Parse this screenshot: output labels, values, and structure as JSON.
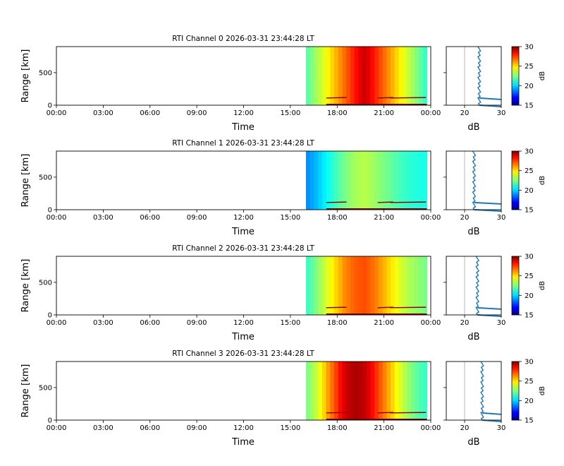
{
  "chart_data": [
    {
      "type": "heatmap",
      "title": "RTI Channel 0 2026-03-31 23:44:28 LT",
      "xlabel": "Time",
      "ylabel": "Range [km]",
      "x_ticks": [
        "00:00",
        "03:00",
        "06:00",
        "09:00",
        "12:00",
        "15:00",
        "18:00",
        "21:00",
        "00:00"
      ],
      "x_range_hours": [
        0,
        24
      ],
      "y_ticks": [
        0,
        500
      ],
      "y_range_km": [
        0,
        900
      ],
      "data_start_hour": 16.0,
      "data_end_hour": 23.75,
      "columns_db": [
        22,
        22.5,
        23,
        23.5,
        24,
        24.5,
        25,
        25.5,
        26,
        26.5,
        27,
        27.5,
        28,
        28.5,
        28.8,
        28.5,
        28,
        27.5,
        27,
        26.5,
        26,
        25.5,
        25,
        24.5,
        24,
        23.5,
        23,
        22.5,
        22,
        21.5
      ],
      "profile": {
        "xlabel": "dB",
        "x_ticks": [
          20,
          30
        ],
        "x_range": [
          15,
          30
        ],
        "baseline_db": 24.0,
        "ref_line_db": 20
      },
      "colorbar": {
        "label": "dB",
        "ticks": [
          15,
          20,
          25,
          30
        ],
        "range": [
          15,
          30
        ],
        "colormap": "jet"
      }
    },
    {
      "type": "heatmap",
      "title": "RTI Channel 1 2026-03-31 23:44:28 LT",
      "xlabel": "Time",
      "ylabel": "Range [km]",
      "x_ticks": [
        "00:00",
        "03:00",
        "06:00",
        "09:00",
        "12:00",
        "15:00",
        "18:00",
        "21:00",
        "00:00"
      ],
      "x_range_hours": [
        0,
        24
      ],
      "y_ticks": [
        0,
        500
      ],
      "y_range_km": [
        0,
        900
      ],
      "data_start_hour": 16.0,
      "data_end_hour": 23.75,
      "columns_db": [
        19,
        19.3,
        19.6,
        20,
        20.4,
        20.8,
        21.2,
        21.6,
        22,
        22.3,
        22.6,
        22.9,
        23.1,
        23.2,
        23.3,
        23.2,
        23,
        22.8,
        22.6,
        22.4,
        22.2,
        22,
        21.8,
        21.6,
        21.4,
        21.3,
        21.2,
        21.1,
        21,
        21
      ],
      "profile": {
        "xlabel": "dB",
        "x_ticks": [
          20,
          30
        ],
        "x_range": [
          15,
          30
        ],
        "baseline_db": 22.6,
        "ref_line_db": 20
      },
      "colorbar": {
        "label": "dB",
        "ticks": [
          15,
          20,
          25,
          30
        ],
        "range": [
          15,
          30
        ],
        "colormap": "jet"
      }
    },
    {
      "type": "heatmap",
      "title": "RTI Channel 2 2026-03-31 23:44:28 LT",
      "xlabel": "Time",
      "ylabel": "Range [km]",
      "x_ticks": [
        "00:00",
        "03:00",
        "06:00",
        "09:00",
        "12:00",
        "15:00",
        "18:00",
        "21:00",
        "00:00"
      ],
      "x_range_hours": [
        0,
        24
      ],
      "y_ticks": [
        0,
        500
      ],
      "y_range_km": [
        0,
        900
      ],
      "data_start_hour": 16.0,
      "data_end_hour": 23.75,
      "columns_db": [
        21.5,
        22,
        22.5,
        23,
        23.5,
        24,
        24.5,
        25,
        25.5,
        26,
        26.3,
        26.6,
        26.8,
        26.9,
        27,
        26.8,
        26.5,
        26.2,
        25.8,
        25.4,
        25,
        24.6,
        24.2,
        23.8,
        23.5,
        23.2,
        23,
        22.8,
        22.6,
        22.4
      ],
      "profile": {
        "xlabel": "dB",
        "x_ticks": [
          20,
          30
        ],
        "x_range": [
          15,
          30
        ],
        "baseline_db": 23.5,
        "ref_line_db": 20
      },
      "colorbar": {
        "label": "dB",
        "ticks": [
          15,
          20,
          25,
          30
        ],
        "range": [
          15,
          30
        ],
        "colormap": "jet"
      }
    },
    {
      "type": "heatmap",
      "title": "RTI Channel 3 2026-03-31 23:44:28 LT",
      "xlabel": "Time",
      "ylabel": "Range [km]",
      "x_ticks": [
        "00:00",
        "03:00",
        "06:00",
        "09:00",
        "12:00",
        "15:00",
        "18:00",
        "21:00",
        "00:00"
      ],
      "x_range_hours": [
        0,
        24
      ],
      "y_ticks": [
        0,
        500
      ],
      "y_range_km": [
        0,
        900
      ],
      "data_start_hour": 16.0,
      "data_end_hour": 23.75,
      "columns_db": [
        22.5,
        23,
        23.5,
        24.2,
        25,
        25.8,
        26.5,
        27.2,
        28,
        28.6,
        29,
        29.2,
        29.3,
        29.2,
        29,
        28.6,
        28,
        27.4,
        26.8,
        26.2,
        25.6,
        25,
        24.4,
        23.8,
        23.3,
        22.8,
        22.4,
        22,
        21.7,
        21.5
      ],
      "profile": {
        "xlabel": "dB",
        "x_ticks": [
          20,
          30
        ],
        "x_range": [
          15,
          30
        ],
        "baseline_db": 24.8,
        "ref_line_db": 20
      },
      "colorbar": {
        "label": "dB",
        "ticks": [
          15,
          20,
          25,
          30
        ],
        "range": [
          15,
          30
        ],
        "colormap": "jet"
      }
    }
  ]
}
